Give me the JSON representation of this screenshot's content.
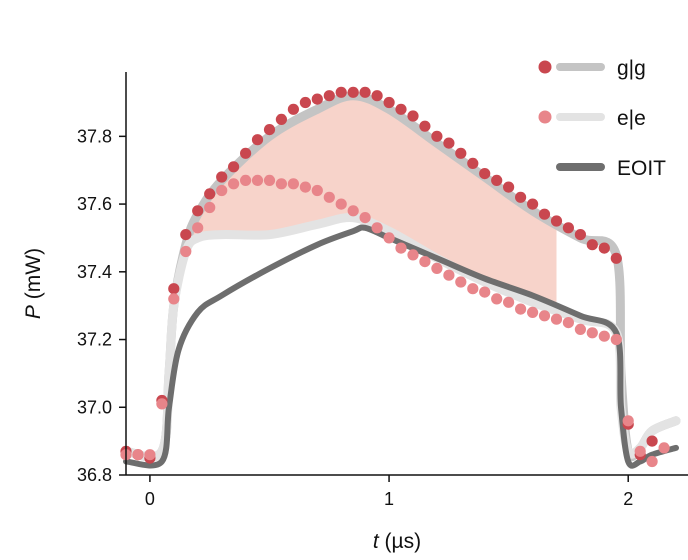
{
  "chart_data": {
    "type": "line",
    "xlabel_italic": "t",
    "xlabel_unit": "(µs)",
    "ylabel_italic": "P",
    "ylabel_unit": "(mW)",
    "xlim": [
      -0.1,
      2.25
    ],
    "ylim": [
      36.8,
      37.99
    ],
    "x_ticks": [
      0,
      1,
      2
    ],
    "y_ticks": [
      36.8,
      37.0,
      37.2,
      37.4,
      37.6,
      37.8
    ],
    "y_tick_labels": [
      "36.8",
      "37.0",
      "37.2",
      "37.4",
      "37.6",
      "37.8"
    ],
    "grid": false,
    "legend_position": "top-right",
    "shaded_region": {
      "color": "#f7d3ca",
      "x_end": 1.7,
      "description_of_bounds": "between g|g and e|e series"
    },
    "series": [
      {
        "name": "g|g",
        "marker_color": "#c9474f",
        "line_color": "#c4c4c4",
        "points_x": [
          -0.1,
          -0.05,
          0.0,
          0.05,
          0.1,
          0.15,
          0.2,
          0.25,
          0.3,
          0.35,
          0.4,
          0.45,
          0.5,
          0.55,
          0.6,
          0.65,
          0.7,
          0.75,
          0.8,
          0.85,
          0.9,
          0.95,
          1.0,
          1.05,
          1.1,
          1.15,
          1.2,
          1.25,
          1.3,
          1.35,
          1.4,
          1.45,
          1.5,
          1.55,
          1.6,
          1.65,
          1.7,
          1.75,
          1.8,
          1.85,
          1.9,
          1.95,
          2.0,
          2.05,
          2.1
        ],
        "points_y": [
          36.87,
          36.86,
          36.85,
          37.02,
          37.35,
          37.51,
          37.58,
          37.63,
          37.68,
          37.71,
          37.75,
          37.79,
          37.82,
          37.85,
          37.88,
          37.9,
          37.91,
          37.92,
          37.93,
          37.93,
          37.93,
          37.92,
          37.9,
          37.88,
          37.86,
          37.83,
          37.8,
          37.78,
          37.75,
          37.72,
          37.69,
          37.67,
          37.65,
          37.62,
          37.6,
          37.57,
          37.55,
          37.53,
          37.51,
          37.48,
          37.47,
          37.44,
          36.95,
          36.86,
          36.9
        ],
        "line_x": [
          -0.1,
          0.05,
          0.08,
          0.1,
          0.15,
          0.2,
          0.3,
          0.5,
          0.7,
          0.85,
          1.0,
          1.2,
          1.4,
          1.6,
          1.8,
          1.95,
          1.97,
          2.0,
          2.05,
          2.1,
          2.2
        ],
        "line_y": [
          36.87,
          36.87,
          37.1,
          37.3,
          37.48,
          37.57,
          37.67,
          37.8,
          37.88,
          37.92,
          37.88,
          37.78,
          37.68,
          37.58,
          37.5,
          37.45,
          37.1,
          36.87,
          36.88,
          36.93,
          36.96
        ]
      },
      {
        "name": "e|e",
        "marker_color": "#e8858a",
        "line_color": "#e3e3e3",
        "points_x": [
          -0.1,
          -0.05,
          0.0,
          0.05,
          0.1,
          0.15,
          0.2,
          0.25,
          0.3,
          0.35,
          0.4,
          0.45,
          0.5,
          0.55,
          0.6,
          0.65,
          0.7,
          0.75,
          0.8,
          0.85,
          0.9,
          0.95,
          1.0,
          1.05,
          1.1,
          1.15,
          1.2,
          1.25,
          1.3,
          1.35,
          1.4,
          1.45,
          1.5,
          1.55,
          1.6,
          1.65,
          1.7,
          1.75,
          1.8,
          1.85,
          1.9,
          1.95,
          2.0,
          2.05,
          2.1,
          2.15
        ],
        "points_y": [
          36.86,
          36.86,
          36.86,
          37.01,
          37.32,
          37.46,
          37.53,
          37.59,
          37.64,
          37.66,
          37.67,
          37.67,
          37.67,
          37.66,
          37.66,
          37.65,
          37.64,
          37.62,
          37.6,
          37.58,
          37.56,
          37.53,
          37.5,
          37.47,
          37.45,
          37.43,
          37.41,
          37.39,
          37.37,
          37.35,
          37.34,
          37.32,
          37.31,
          37.29,
          37.28,
          37.27,
          37.26,
          37.25,
          37.23,
          37.22,
          37.21,
          37.2,
          36.96,
          36.87,
          36.84,
          36.88
        ],
        "line_x": [
          -0.1,
          0.05,
          0.08,
          0.1,
          0.15,
          0.2,
          0.3,
          0.5,
          0.7,
          0.85,
          1.0,
          1.2,
          1.4,
          1.6,
          1.8,
          1.95,
          1.97,
          2.0,
          2.05,
          2.1,
          2.2
        ],
        "line_y": [
          36.87,
          36.87,
          37.1,
          37.3,
          37.46,
          37.5,
          37.51,
          37.51,
          37.54,
          37.56,
          37.52,
          37.44,
          37.37,
          37.31,
          37.26,
          37.22,
          37.0,
          36.87,
          36.88,
          36.93,
          36.96
        ]
      },
      {
        "name": "EOIT",
        "line_color": "#6e6e6e",
        "line_x": [
          -0.1,
          0.05,
          0.08,
          0.12,
          0.2,
          0.3,
          0.5,
          0.7,
          0.85,
          0.9,
          1.0,
          1.2,
          1.4,
          1.6,
          1.8,
          1.95,
          1.97,
          2.0,
          2.05,
          2.1,
          2.2
        ],
        "line_y": [
          36.84,
          36.84,
          37.0,
          37.17,
          37.28,
          37.33,
          37.41,
          37.48,
          37.52,
          37.53,
          37.5,
          37.44,
          37.38,
          37.33,
          37.27,
          37.22,
          37.0,
          36.84,
          36.84,
          36.86,
          36.88
        ]
      }
    ]
  }
}
